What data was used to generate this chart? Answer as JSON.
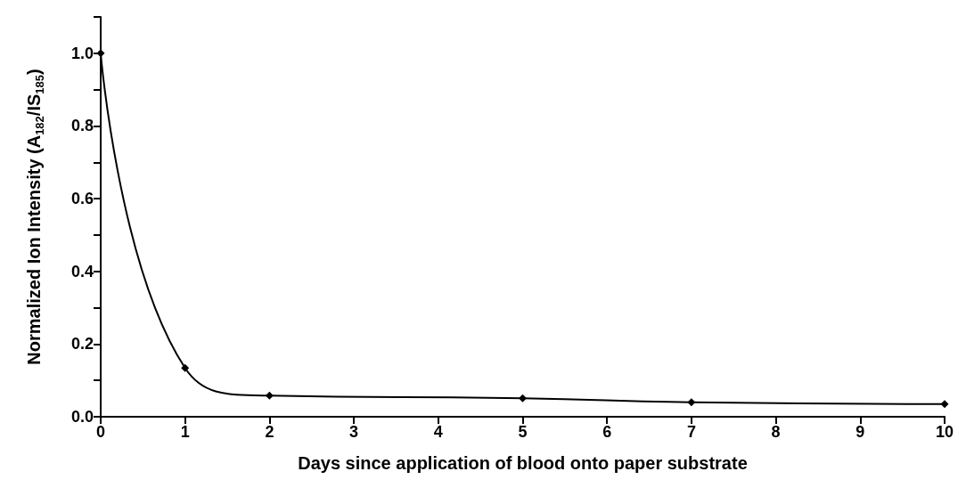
{
  "chart_data": {
    "type": "line",
    "xlabel": "Days since application of blood onto paper substrate",
    "ylabel": "Normalized Ion Intensity (A$_{182}$/IS$_{185}$)",
    "x": [
      0,
      1,
      2,
      5,
      7,
      10
    ],
    "series": [
      {
        "color": "#000000",
        "values": [
          1.0,
          0.134,
          0.058,
          0.051,
          0.04,
          0.035
        ]
      }
    ],
    "xlim": [
      0,
      10
    ],
    "xticks": [
      0,
      1,
      2,
      3,
      4,
      5,
      6,
      7,
      8,
      9,
      10
    ],
    "ylim": [
      0,
      1.1
    ],
    "yticks": [
      "0.0",
      {
        "value": 0.1,
        "label": null
      },
      {
        "value": 0.2,
        "label": "0.2"
      },
      {
        "value": 0.3,
        "label": null
      },
      {
        "value": 0.4,
        "label": "0.4"
      },
      {
        "value": 0.5,
        "label": null
      },
      {
        "value": 0.6,
        "label": "0.6"
      },
      {
        "value": 0.7,
        "label": null
      },
      {
        "value": 0.8,
        "label": "0.8"
      },
      {
        "value": 0.9,
        "label": null
      },
      {
        "value": 1.0,
        "label": "1.0"
      },
      {
        "value": 1.1,
        "label": null
      }
    ],
    "marker": "diamond",
    "line_style": "solid"
  }
}
